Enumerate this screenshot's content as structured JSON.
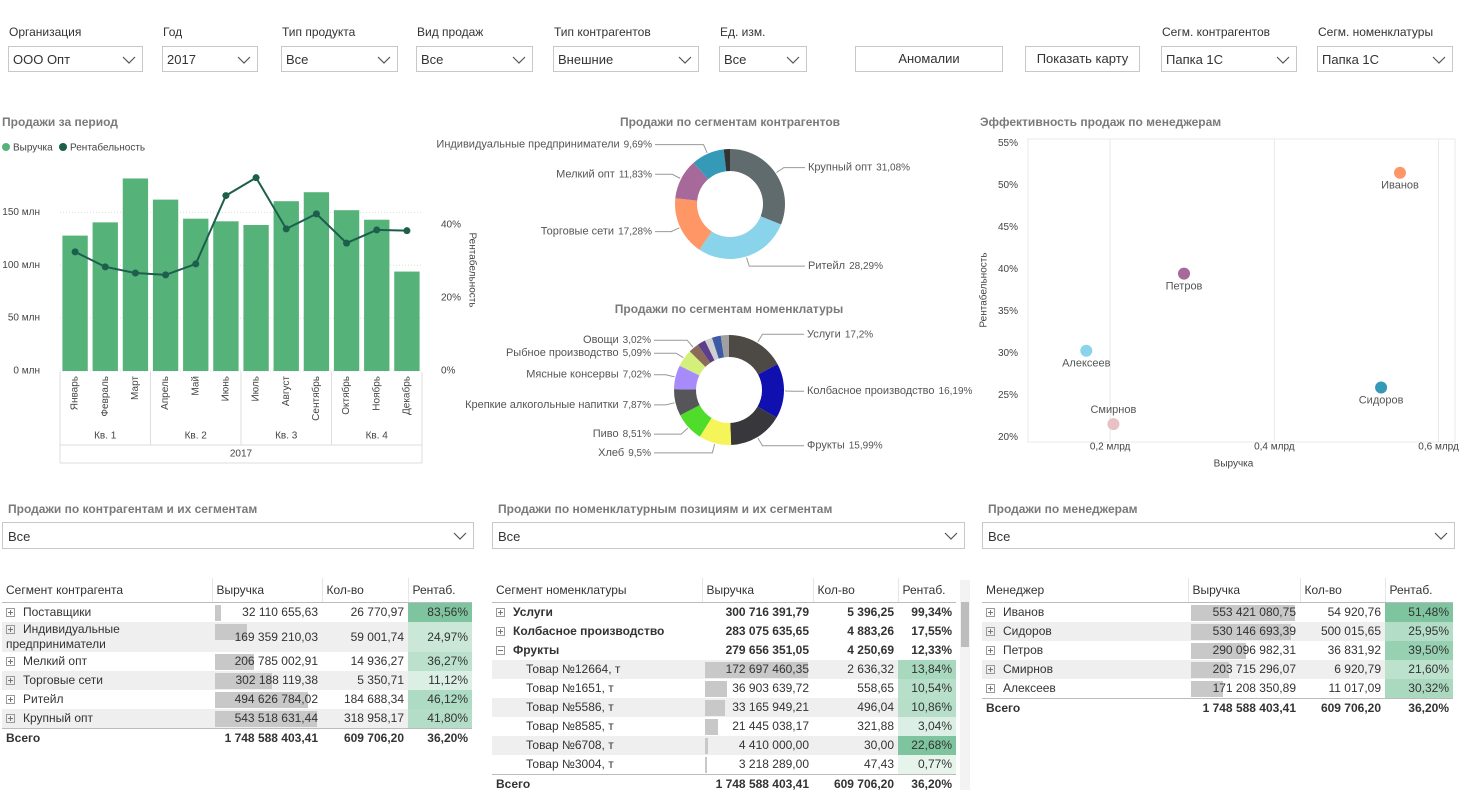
{
  "filters": [
    {
      "label": "Организация",
      "value": "ООО Опт"
    },
    {
      "label": "Год",
      "value": "2017"
    },
    {
      "label": "Тип продукта",
      "value": "Все"
    },
    {
      "label": "Вид продаж",
      "value": "Все"
    },
    {
      "label": "Тип контрагентов",
      "value": "Внешние"
    },
    {
      "label": "Ед. изм.",
      "value": "Все"
    },
    {
      "label": "Сегм. контрагентов",
      "value": "Папка 1С"
    },
    {
      "label": "Сегм. номенклатуры",
      "value": "Папка 1С"
    }
  ],
  "buttons": [
    "Аномалии",
    "Показать карту"
  ],
  "chart_data": [
    {
      "type": "combo",
      "title": "Продажи за период",
      "categories": [
        "Январь",
        "Февраль",
        "Март",
        "Апрель",
        "Май",
        "Июнь",
        "Июль",
        "Август",
        "Сентябрь",
        "Октябрь",
        "Ноябрь",
        "Декабрь"
      ],
      "quarters": [
        "Кв. 1",
        "Кв. 2",
        "Кв. 3",
        "Кв. 4"
      ],
      "year": "2017",
      "series": [
        {
          "name": "Выручка",
          "type": "bar",
          "color": "#55b37a",
          "values": [
            128,
            140.5,
            182,
            162,
            144,
            141.5,
            138,
            160.5,
            169,
            152,
            143,
            94
          ]
        },
        {
          "name": "Рентабельность",
          "type": "line",
          "axis": "y2",
          "color": "#1d5e4c",
          "values": [
            32.6,
            28.5,
            26.8,
            26.3,
            29.3,
            48,
            52.9,
            38.9,
            43,
            35,
            38.6,
            38.4
          ]
        }
      ],
      "y2label": "Рентабельность",
      "ylim": [
        0,
        190
      ],
      "yticks": [
        {
          "value": 0,
          "label": "0 млн"
        },
        {
          "value": 50,
          "label": "50 млн"
        },
        {
          "value": 100,
          "label": "100 млн"
        },
        {
          "value": 150,
          "label": "150 млн"
        }
      ],
      "y2lim": [
        0,
        55
      ],
      "y2ticks": [
        {
          "value": 0,
          "label": "0%"
        },
        {
          "value": 20,
          "label": "20%"
        },
        {
          "value": 40,
          "label": "40%"
        }
      ],
      "grid": true
    },
    {
      "type": "donut",
      "title": "Продажи по сегментам контрагентов",
      "categories": [
        "Крупный опт",
        "Ритейл",
        "Торговые сети",
        "Мелкий опт",
        "Индивидуальные предприниматели",
        null
      ],
      "values": [
        31.08,
        28.29,
        17.28,
        11.83,
        9.69,
        1.83
      ],
      "value_labels": [
        "31,08%",
        "28,29%",
        "17,28%",
        "11,83%",
        "9,69%",
        null
      ],
      "colors": [
        "#5f6b6d",
        "#8ad4eb",
        "#fe9666",
        "#a66999",
        "#3599b8",
        "#333333"
      ]
    },
    {
      "type": "donut",
      "title": "Продажи по сегментам номенклатуры",
      "categories": [
        "Услуги",
        "Колбасное производство",
        "Фрукты",
        "Хлеб",
        "Пиво",
        "Крепкие алкогольные напитки",
        "Мясные консервы",
        "Рыбное производство",
        "Овощи",
        null,
        null,
        null,
        null
      ],
      "values": [
        17.2,
        16.19,
        15.99,
        9.5,
        8.51,
        7.87,
        7.02,
        5.09,
        3.02,
        2.4,
        2.2,
        2.6,
        2.41
      ],
      "value_labels": [
        "17,2%",
        "16,19%",
        "15,99%",
        "9,5%",
        "8,51%",
        "7,87%",
        "7,02%",
        "5,09%",
        "3,02%",
        null,
        null,
        null,
        null
      ],
      "colors": [
        "#4d4a45",
        "#1010b0",
        "#38383c",
        "#f5f55a",
        "#4fdc2a",
        "#55555a",
        "#a78bfa",
        "#d4f07a",
        "#8b6a5a",
        "#5b3f8c",
        "#d0d0d0",
        "#3c5aa6",
        "#a0a0a0"
      ]
    },
    {
      "type": "scatter",
      "title": "Эффективность продаж по менеджерам",
      "categories": [
        "Иванов",
        "Сидоров",
        "Петров",
        "Смирнов",
        "Алексеев"
      ],
      "x": [
        0.553,
        0.53,
        0.29,
        0.204,
        0.171
      ],
      "values": [
        51.48,
        25.95,
        39.5,
        21.6,
        30.32
      ],
      "colors": [
        "#fe9666",
        "#3599b8",
        "#a66999",
        "#e8c1c5",
        "#8ad4eb"
      ],
      "xlabel": "Выручка",
      "ylabel": "Рентабельность",
      "xlim": [
        0.1,
        0.62
      ],
      "xticks": [
        {
          "value": 0.2,
          "label": "0,2 млрд"
        },
        {
          "value": 0.4,
          "label": "0,4 млрд"
        },
        {
          "value": 0.6,
          "label": "0,6 млрд"
        }
      ],
      "ylim": [
        19,
        55.5
      ],
      "yticks": [
        {
          "value": 20,
          "label": "20%"
        },
        {
          "value": 25,
          "label": "25%"
        },
        {
          "value": 30,
          "label": "30%"
        },
        {
          "value": 35,
          "label": "35%"
        },
        {
          "value": 40,
          "label": "40%"
        },
        {
          "value": 45,
          "label": "45%"
        },
        {
          "value": 50,
          "label": "50%"
        },
        {
          "value": 55,
          "label": "55%"
        }
      ],
      "grid": true
    }
  ],
  "tables": [
    {
      "title": "Продажи по контрагентам и их сегментам",
      "filter": "Все",
      "columns": [
        "Сегмент контрагента",
        "Выручка",
        "Кол-во",
        "Рентаб."
      ],
      "rows": [
        [
          "Поставщики",
          "32 110 655,63",
          "26 770,97",
          "83,56%"
        ],
        [
          "Индивидуальные предприниматели",
          "169 359 210,03",
          "59 001,74",
          "24,97%"
        ],
        [
          "Мелкий опт",
          "206 785 002,91",
          "14 936,27",
          "36,27%"
        ],
        [
          "Торговые сети",
          "302 188 119,38",
          "5 350,71",
          "11,12%"
        ],
        [
          "Ритейл",
          "494 626 784,02",
          "184 688,34",
          "46,12%"
        ],
        [
          "Крупный опт",
          "543 518 631,44",
          "318 958,17",
          "41,80%"
        ]
      ],
      "total": [
        "Всего",
        "1 748 588 403,41",
        "609 706,20",
        "36,20%"
      ]
    },
    {
      "title": "Продажи по номенклатурным позициям и их сегментам",
      "filter": "Все",
      "columns": [
        "Сегмент номенклатуры",
        "Выручка",
        "Кол-во",
        "Рентаб."
      ],
      "rows": [
        {
          "cells": [
            "Услуги",
            "300 716 391,79",
            "5 396,25",
            "99,34%"
          ]
        },
        {
          "cells": [
            "Колбасное производство",
            "283 075 635,65",
            "4 883,26",
            "17,55%"
          ]
        },
        {
          "cells": [
            "Фрукты",
            "279 656 351,05",
            "4 250,69",
            "12,33%"
          ],
          "items": [
            [
              "Товар №12664, т",
              "172 697 460,35",
              "2 636,32",
              "13,84%"
            ],
            [
              "Товар №1651, т",
              "36 903 639,72",
              "558,65",
              "10,54%"
            ],
            [
              "Товар №5586, т",
              "33 165 949,21",
              "496,04",
              "10,86%"
            ],
            [
              "Товар №8585, т",
              "21 445 038,17",
              "321,88",
              "3,04%"
            ],
            [
              "Товар №6708, т",
              "4 410 000,00",
              "30,00",
              "22,68%"
            ],
            [
              "Товар №3004, т",
              "3 218 289,00",
              "47,43",
              "0,77%"
            ]
          ]
        }
      ],
      "total": [
        "Всего",
        "1 748 588 403,41",
        "609 706,20",
        "36,20%"
      ]
    },
    {
      "title": "Продажи по менеджерам",
      "filter": "Все",
      "columns": [
        "Менеджер",
        "Выручка",
        "Кол-во",
        "Рентаб."
      ],
      "rows": [
        [
          "Иванов",
          "553 421 080,75",
          "54 920,76",
          "51,48%"
        ],
        [
          "Сидоров",
          "530 146 693,39",
          "500 015,65",
          "25,95%"
        ],
        [
          "Петров",
          "290 096 982,31",
          "36 831,92",
          "39,50%"
        ],
        [
          "Смирнов",
          "203 715 296,07",
          "6 920,79",
          "21,60%"
        ],
        [
          "Алексеев",
          "171 208 350,89",
          "11 017,09",
          "30,32%"
        ]
      ],
      "total": [
        "Всего",
        "1 748 588 403,41",
        "609 706,20",
        "36,20%"
      ]
    }
  ]
}
